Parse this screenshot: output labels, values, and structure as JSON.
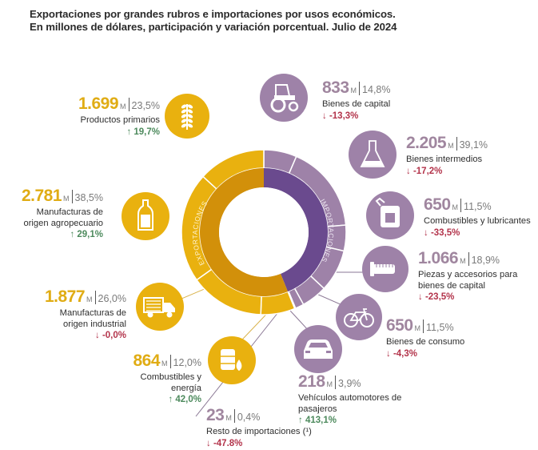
{
  "title": {
    "line1": "Exportaciones por grandes rubros e importaciones por usos económicos.",
    "line2": "En millones de dólares, participación y variación porcentual. Julio de 2024"
  },
  "colors": {
    "exports_outer": "#E9B10F",
    "exports_inner": "#D2900A",
    "imports_outer": "#9E82A8",
    "imports_inner": "#6A4A8E",
    "up": "#4d8a5d",
    "down": "#b3344b"
  },
  "unit_suffix": "M",
  "chart_data": {
    "type": "pie",
    "title": "Exportaciones por grandes rubros e importaciones por usos económicos. En millones de dólares, participación y variación porcentual. Julio de 2024",
    "rings": [
      {
        "name": "EXPORTACIONES",
        "label": "EXPORTACIONES"
      },
      {
        "name": "IMPORTACIONES",
        "label": "IMPORTACIONES"
      }
    ],
    "exports": [
      {
        "name": "Productos primarios",
        "value": "1.699",
        "value_num": 1699,
        "share": "23,5%",
        "change": "19,7%",
        "direction": "up",
        "icon": "wheat-icon"
      },
      {
        "name": "Manufacturas de origen agropecuario",
        "line1": "Manufacturas de",
        "line2": "origen agropecuario",
        "value": "2.781",
        "value_num": 2781,
        "share": "38,5%",
        "change": "29,1%",
        "direction": "up",
        "icon": "bottle-icon"
      },
      {
        "name": "Manufacturas de origen industrial",
        "line1": "Manufacturas de",
        "line2": "origen industrial",
        "value": "1.877",
        "value_num": 1877,
        "share": "26,0%",
        "change": "-0,0%",
        "direction": "down",
        "icon": "truck-icon"
      },
      {
        "name": "Combustibles y energía",
        "value": "864",
        "value_num": 864,
        "share": "12,0%",
        "change": "42,0%",
        "direction": "up",
        "icon": "oil-barrel-icon"
      }
    ],
    "imports": [
      {
        "name": "Bienes de capital",
        "value": "833",
        "value_num": 833,
        "share": "14,8%",
        "change": "-13,3%",
        "direction": "down",
        "icon": "tractor-icon"
      },
      {
        "name": "Bienes intermedios",
        "value": "2.205",
        "value_num": 2205,
        "share": "39,1%",
        "change": "-17,2%",
        "direction": "down",
        "icon": "flask-icon"
      },
      {
        "name": "Combustibles y lubricantes",
        "value": "650",
        "value_num": 650,
        "share": "11,5%",
        "change": "-33,5%",
        "direction": "down",
        "icon": "jerrycan-icon"
      },
      {
        "name": "Piezas y accesorios para bienes de capital",
        "line1": "Piezas y accesorios para",
        "line2": "bienes de capital",
        "value": "1.066",
        "value_num": 1066,
        "share": "18,9%",
        "change": "-23,5%",
        "direction": "down",
        "icon": "bolt-part-icon"
      },
      {
        "name": "Bienes de consumo",
        "value": "650",
        "value_num": 650,
        "share": "11,5%",
        "change": "-4,3%",
        "direction": "down",
        "icon": "bicycle-icon"
      },
      {
        "name": "Vehículos automotores de pasajeros",
        "value": "218",
        "value_num": 218,
        "share": "3,9%",
        "change": "413,1%",
        "direction": "up",
        "icon": "car-icon"
      },
      {
        "name": "Resto de importaciones (¹)",
        "value": "23",
        "value_num": 23,
        "share": "0,4%",
        "change": "-47.8%",
        "direction": "down",
        "icon": ""
      }
    ]
  }
}
